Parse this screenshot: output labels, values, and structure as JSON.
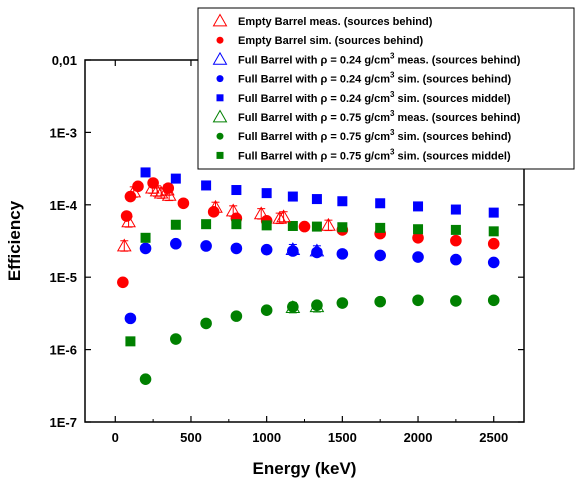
{
  "chart_data": {
    "type": "scatter",
    "title": "",
    "xlabel": "Energy (keV)",
    "ylabel": "Efficiency",
    "xlim": [
      -200,
      2700
    ],
    "ylim": [
      1e-07,
      0.01
    ],
    "yscale": "log",
    "xticks": [
      0,
      500,
      1000,
      1500,
      2000,
      2500
    ],
    "xtick_labels": [
      "0",
      "500",
      "1000",
      "1500",
      "2000",
      "2500"
    ],
    "yticks": [
      1e-07,
      1e-06,
      1e-05,
      0.0001,
      0.001,
      0.01
    ],
    "ytick_labels": [
      "1E-7",
      "1E-6",
      "1E-5",
      "1E-4",
      "1E-3",
      "0,01"
    ],
    "grid": false,
    "legend_position": "top-right",
    "series": [
      {
        "name": "Empty Barrel meas. (sources behind)",
        "legend": {
          "pre": "Empty Barrel meas. (sources behind)"
        },
        "marker": "triangle-open",
        "color": "#ff0000",
        "errorbars": true,
        "x": [
          59.5,
          88,
          122,
          245,
          276,
          303,
          344,
          356,
          662,
          779,
          964,
          1086,
          1112,
          1408
        ],
        "y": [
          2.7e-05,
          5.8e-05,
          0.00015,
          0.00017,
          0.000155,
          0.000145,
          0.00016,
          0.000135,
          9.2e-05,
          8.2e-05,
          7.5e-05,
          6.5e-05,
          6.8e-05,
          5.2e-05
        ]
      },
      {
        "name": "Empty Barrel sim. (sources behind)",
        "legend": {
          "pre": "Empty Barrel sim. (sources behind)"
        },
        "marker": "circle",
        "color": "#ff0000",
        "errorbars": false,
        "x": [
          50,
          75,
          100,
          150,
          250,
          350,
          450,
          650,
          800,
          1000,
          1250,
          1500,
          1750,
          2000,
          2250,
          2500
        ],
        "y": [
          8.5e-06,
          7e-05,
          0.00013,
          0.00018,
          0.0002,
          0.00017,
          0.000105,
          8e-05,
          6.5e-05,
          6e-05,
          5e-05,
          4.5e-05,
          4e-05,
          3.5e-05,
          3.2e-05,
          2.9e-05
        ]
      },
      {
        "name": "Full Barrel with ρ = 0.24 g/cm3 meas. (sources behind)",
        "legend": {
          "pre": "Full Barrel with ",
          "rho": "ρ",
          "mid": " = 0.24 g/cm",
          "sup": "3",
          "post": " meas. (sources behind)"
        },
        "marker": "triangle-open",
        "color": "#0000ff",
        "errorbars": true,
        "x": [
          1173,
          1332
        ],
        "y": [
          2.4e-05,
          2.3e-05
        ]
      },
      {
        "name": "Full Barrel with ρ = 0.24 g/cm3 sim. (sources behind)",
        "legend": {
          "pre": "Full Barrel with ",
          "rho": "ρ",
          "mid": " = 0.24 g/cm",
          "sup": "3",
          "post": " sim. (sources behind)"
        },
        "marker": "circle",
        "color": "#0000ff",
        "errorbars": false,
        "x": [
          100,
          200,
          400,
          600,
          800,
          1000,
          1173,
          1332,
          1500,
          1750,
          2000,
          2250,
          2500
        ],
        "y": [
          2.7e-06,
          2.5e-05,
          2.9e-05,
          2.7e-05,
          2.5e-05,
          2.4e-05,
          2.3e-05,
          2.2e-05,
          2.1e-05,
          2e-05,
          1.9e-05,
          1.75e-05,
          1.6e-05
        ]
      },
      {
        "name": "Full Barrel with ρ = 0.24 g/cm3 sim. (sources middel)",
        "legend": {
          "pre": "Full Barrel with ",
          "rho": "ρ",
          "mid": " = 0.24 g/cm",
          "sup": "3",
          "post": " sim. (sources middel)"
        },
        "marker": "square",
        "color": "#0000ff",
        "errorbars": false,
        "x": [
          200,
          400,
          600,
          800,
          1000,
          1173,
          1332,
          1500,
          1750,
          2000,
          2250,
          2500
        ],
        "y": [
          0.00028,
          0.00023,
          0.000185,
          0.00016,
          0.000145,
          0.00013,
          0.00012,
          0.000112,
          0.000105,
          9.5e-05,
          8.6e-05,
          7.8e-05
        ]
      },
      {
        "name": "Full Barrel with ρ = 0.75 g/cm3 meas. (sources behind)",
        "legend": {
          "pre": "Full Barrel with ",
          "rho": "ρ",
          "mid": " = 0.75 g/cm",
          "sup": "3",
          "post": " meas. (sources behind)"
        },
        "marker": "triangle-open",
        "color": "#008000",
        "errorbars": true,
        "x": [
          1173,
          1332
        ],
        "y": [
          3.8e-06,
          3.9e-06
        ]
      },
      {
        "name": "Full Barrel with ρ = 0.75 g/cm3 sim. (sources behind)",
        "legend": {
          "pre": "Full Barrel with ",
          "rho": "ρ",
          "mid": " = 0.75 g/cm",
          "sup": "3",
          "post": " sim. (sources behind)"
        },
        "marker": "circle",
        "color": "#008000",
        "errorbars": false,
        "x": [
          200,
          400,
          600,
          800,
          1000,
          1173,
          1332,
          1500,
          1750,
          2000,
          2250,
          2500
        ],
        "y": [
          3.9e-07,
          1.4e-06,
          2.3e-06,
          2.9e-06,
          3.5e-06,
          3.9e-06,
          4.1e-06,
          4.4e-06,
          4.6e-06,
          4.8e-06,
          4.7e-06,
          4.8e-06
        ]
      },
      {
        "name": "Full Barrel with ρ = 0.75 g/cm3 sim. (sources middel)",
        "legend": {
          "pre": "Full Barrel with ",
          "rho": "ρ",
          "mid": " = 0.75 g/cm",
          "sup": "3",
          "post": " sim. (sources middel)"
        },
        "marker": "square",
        "color": "#008000",
        "errorbars": false,
        "x": [
          100,
          200,
          400,
          600,
          800,
          1000,
          1173,
          1332,
          1500,
          1750,
          2000,
          2250,
          2500
        ],
        "y": [
          1.3e-06,
          3.5e-05,
          5.3e-05,
          5.4e-05,
          5.4e-05,
          5.2e-05,
          5.1e-05,
          5e-05,
          4.9e-05,
          4.8e-05,
          4.6e-05,
          4.5e-05,
          4.3e-05
        ]
      }
    ]
  }
}
